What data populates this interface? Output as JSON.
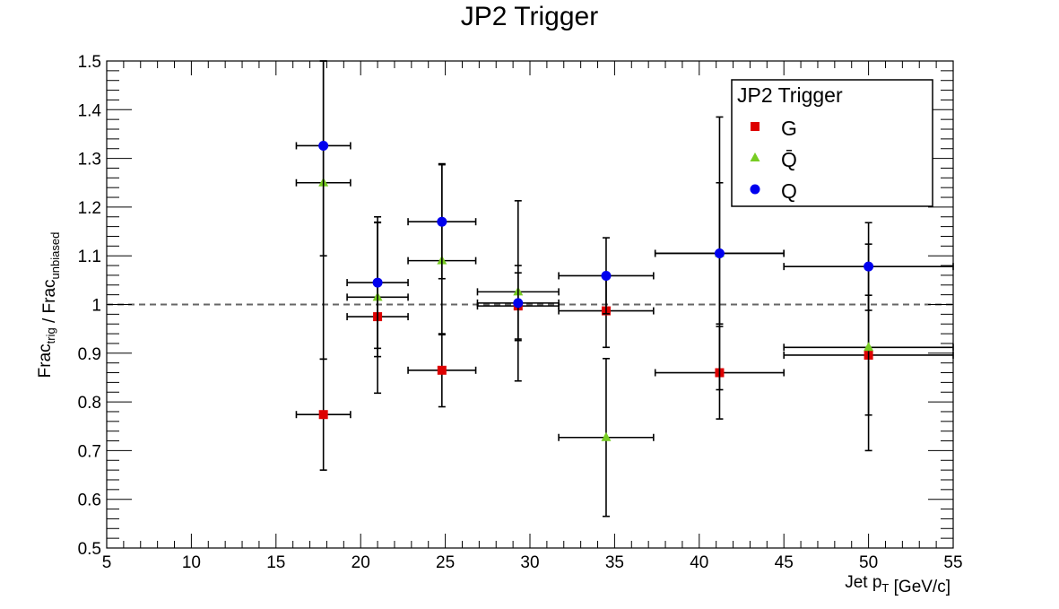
{
  "chart_data": {
    "type": "scatter",
    "title": "JP2 Trigger",
    "xlabel": "Jet p_T [GeV/c]",
    "ylabel": "Frac_trig / Frac_unbiased",
    "xlim": [
      5,
      55
    ],
    "ylim": [
      0.5,
      1.5
    ],
    "x_ticks": [
      5,
      10,
      15,
      20,
      25,
      30,
      35,
      40,
      45,
      50,
      55
    ],
    "y_ticks": [
      0.5,
      0.6,
      0.7,
      0.8,
      0.9,
      1.0,
      1.1,
      1.2,
      1.3,
      1.4,
      1.5
    ],
    "x_tick_labels": [
      "5",
      "10",
      "15",
      "20",
      "25",
      "30",
      "35",
      "40",
      "45",
      "50",
      "55"
    ],
    "y_tick_labels": [
      "0.5",
      "0.6",
      "0.7",
      "0.8",
      "0.9",
      "1",
      "1.1",
      "1.2",
      "1.3",
      "1.4",
      "1.5"
    ],
    "reference_line": {
      "y": 1.0,
      "style": "dashed",
      "color": "#666666"
    },
    "grid": false,
    "legend": {
      "title": "JP2 Trigger",
      "position": "top-right"
    },
    "series": [
      {
        "name": "G",
        "marker": "square",
        "color": "#dd0000",
        "points": [
          {
            "x": 17.8,
            "xerr": [
              1.6,
              1.6
            ],
            "y": 0.774,
            "yerr": [
              0.114,
              0.114
            ]
          },
          {
            "x": 21.0,
            "xerr": [
              1.8,
              1.8
            ],
            "y": 0.975,
            "yerr": [
              0.157,
              0.193
            ]
          },
          {
            "x": 24.8,
            "xerr": [
              2.0,
              2.0
            ],
            "y": 0.865,
            "yerr": [
              0.075,
              0.075
            ]
          },
          {
            "x": 29.3,
            "xerr": [
              2.4,
              2.4
            ],
            "y": 0.997,
            "yerr": [
              0.068,
              0.068
            ]
          },
          {
            "x": 34.5,
            "xerr": [
              2.8,
              2.8
            ],
            "y": 0.987,
            "yerr": [
              0.075,
              0.075
            ]
          },
          {
            "x": 41.2,
            "xerr": [
              3.8,
              3.8
            ],
            "y": 0.86,
            "yerr": [
              0.095,
              0.095
            ]
          },
          {
            "x": 50.0,
            "xerr": [
              5.0,
              5.0
            ],
            "y": 0.896,
            "yerr": [
              0.123,
              0.123
            ]
          }
        ]
      },
      {
        "name": "Q̄",
        "marker": "triangle",
        "color": "#77cc22",
        "points": [
          {
            "x": 17.8,
            "xerr": [
              1.6,
              1.6
            ],
            "y": 1.25,
            "yerr": [
              0.362,
              0.25
            ]
          },
          {
            "x": 21.0,
            "xerr": [
              1.8,
              1.8
            ],
            "y": 1.015,
            "yerr": [
              0.122,
              0.154
            ]
          },
          {
            "x": 24.8,
            "xerr": [
              2.0,
              2.0
            ],
            "y": 1.09,
            "yerr": [
              0.152,
              0.199
            ]
          },
          {
            "x": 29.3,
            "xerr": [
              2.4,
              2.4
            ],
            "y": 1.026,
            "yerr": [
              0.183,
              0.187
            ]
          },
          {
            "x": 34.5,
            "xerr": [
              2.8,
              2.8
            ],
            "y": 0.727,
            "yerr": [
              0.162,
              0.162
            ]
          },
          {
            "x": 41.2,
            "xerr": [
              3.8,
              3.8
            ],
            "y": 1.105,
            "yerr": [
              0.145,
              0.145
            ]
          },
          {
            "x": 50.0,
            "xerr": [
              5.0,
              5.0
            ],
            "y": 0.912,
            "yerr": [
              0.212,
              0.212
            ]
          }
        ]
      },
      {
        "name": "Q",
        "marker": "circle",
        "color": "#0000ee",
        "points": [
          {
            "x": 17.8,
            "xerr": [
              1.6,
              1.6
            ],
            "y": 1.326,
            "yerr": [
              0.226,
              0.226
            ]
          },
          {
            "x": 21.0,
            "xerr": [
              1.8,
              1.8
            ],
            "y": 1.045,
            "yerr": [
              0.135,
              0.135
            ]
          },
          {
            "x": 24.8,
            "xerr": [
              2.0,
              2.0
            ],
            "y": 1.17,
            "yerr": [
              0.117,
              0.117
            ]
          },
          {
            "x": 29.3,
            "xerr": [
              2.4,
              2.4
            ],
            "y": 1.003,
            "yerr": [
              0.077,
              0.077
            ]
          },
          {
            "x": 34.5,
            "xerr": [
              2.8,
              2.8
            ],
            "y": 1.059,
            "yerr": [
              0.078,
              0.078
            ]
          },
          {
            "x": 41.2,
            "xerr": [
              3.8,
              3.8
            ],
            "y": 1.105,
            "yerr": [
              0.28,
              0.28
            ]
          },
          {
            "x": 50.0,
            "xerr": [
              5.0,
              5.0
            ],
            "y": 1.078,
            "yerr": [
              0.09,
              0.09
            ]
          }
        ]
      }
    ]
  }
}
